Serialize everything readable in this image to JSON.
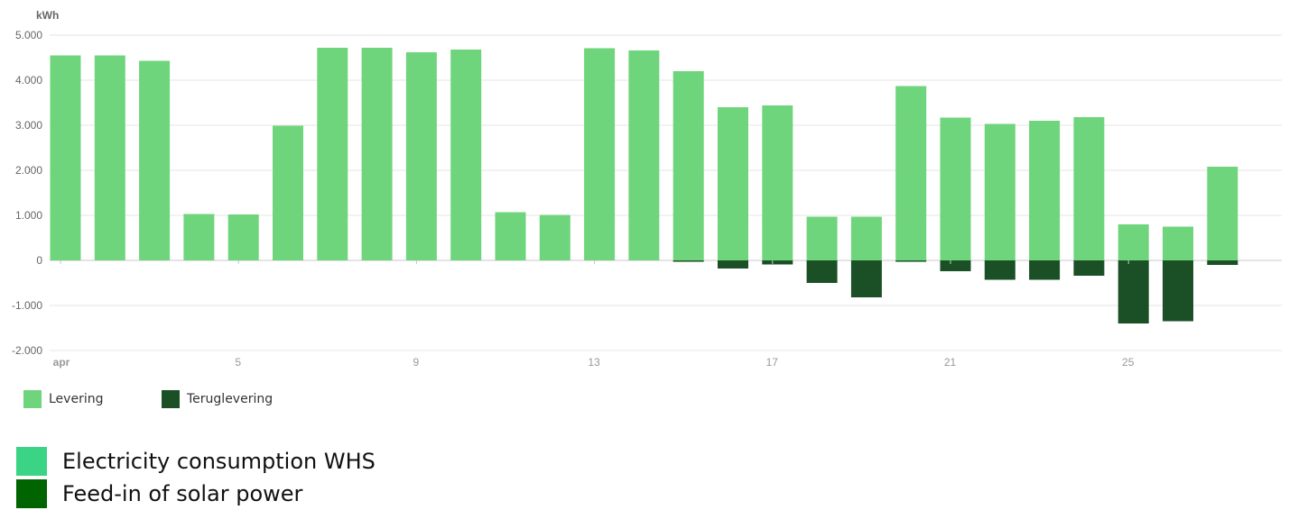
{
  "chart_data": {
    "type": "bar",
    "ylabel": "kWh",
    "ylim": [
      -2000,
      5000
    ],
    "y_ticks": [
      "5.000",
      "4.000",
      "3.000",
      "2.000",
      "1.000",
      "0",
      "-1.000",
      "-2.000"
    ],
    "y_tick_values": [
      5000,
      4000,
      3000,
      2000,
      1000,
      0,
      -1000,
      -2000
    ],
    "x": [
      1,
      2,
      3,
      4,
      5,
      6,
      7,
      8,
      9,
      10,
      11,
      12,
      13,
      14,
      15,
      16,
      17,
      18,
      19,
      20,
      21,
      22,
      23,
      24,
      25,
      26,
      27
    ],
    "x_ticks": [
      {
        "at": 1,
        "label": "apr"
      },
      {
        "at": 5,
        "label": "5"
      },
      {
        "at": 9,
        "label": "9"
      },
      {
        "at": 13,
        "label": "13"
      },
      {
        "at": 17,
        "label": "17"
      },
      {
        "at": 21,
        "label": "21"
      },
      {
        "at": 25,
        "label": "25"
      }
    ],
    "series": [
      {
        "name": "Levering",
        "color": "#6fd57c",
        "values": [
          4550,
          4550,
          4430,
          1030,
          1020,
          2990,
          4720,
          4720,
          4620,
          4680,
          1070,
          1010,
          4710,
          4660,
          4200,
          3400,
          3440,
          970,
          970,
          3870,
          3170,
          3030,
          3100,
          3180,
          800,
          750,
          2080
        ]
      },
      {
        "name": "Teruglevering",
        "color": "#1b4f25",
        "values": [
          0,
          0,
          0,
          0,
          0,
          0,
          0,
          0,
          0,
          0,
          0,
          0,
          0,
          0,
          -30,
          -180,
          -90,
          -500,
          -820,
          -30,
          -240,
          -430,
          -430,
          -340,
          -1400,
          -1350,
          -100
        ]
      }
    ],
    "grid": true,
    "legend": "bottom-left"
  },
  "legend_primary": [
    {
      "label": "Levering",
      "color": "#6fd57c"
    },
    {
      "label": "Teruglevering",
      "color": "#1b4f25"
    }
  ],
  "legend_secondary": [
    {
      "label": "Electricity consumption WHS",
      "color": "#3bd384"
    },
    {
      "label": "Feed-in of solar power",
      "color": "#006400"
    }
  ]
}
